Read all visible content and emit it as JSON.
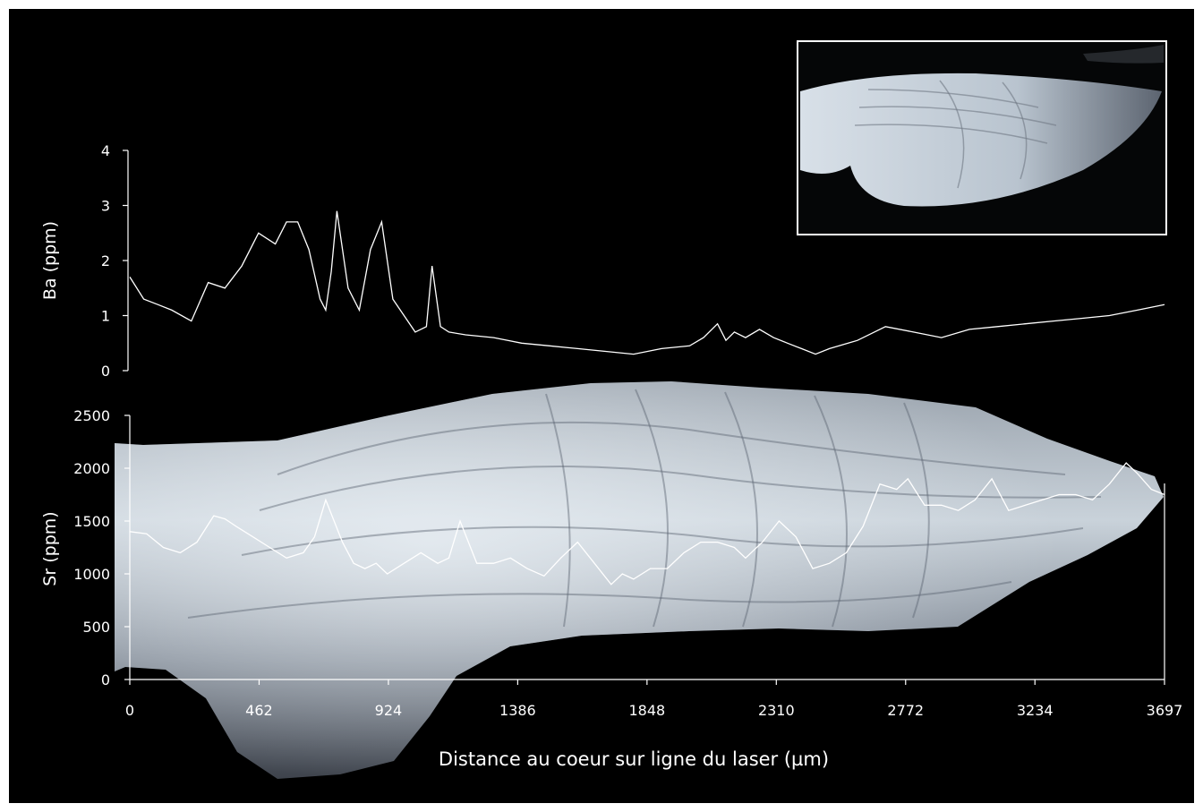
{
  "colors": {
    "background": "#000000",
    "foreground": "#ffffff",
    "otolith_light": "#dce6ee",
    "otolith_dark": "#5a6270"
  },
  "chart_data": [
    {
      "type": "line",
      "ylabel": "Ba (ppm)",
      "ylim": [
        0,
        4
      ],
      "yticks": [
        0,
        1,
        2,
        3,
        4
      ],
      "xlim": [
        0,
        3697
      ],
      "series": [
        {
          "x": [
            0,
            50,
            100,
            150,
            220,
            280,
            340,
            400,
            460,
            520,
            560,
            600,
            640,
            680,
            700,
            720,
            740,
            780,
            820,
            860,
            900,
            940,
            980,
            1020,
            1060,
            1080,
            1110,
            1140,
            1200,
            1300,
            1400,
            1500,
            1600,
            1700,
            1800,
            1900,
            2000,
            2050,
            2100,
            2130,
            2160,
            2200,
            2250,
            2300,
            2350,
            2400,
            2450,
            2500,
            2600,
            2700,
            2800,
            2900,
            3000,
            3100,
            3200,
            3300,
            3400,
            3500,
            3600,
            3697
          ],
          "values": [
            1.7,
            1.3,
            1.2,
            1.1,
            0.9,
            1.6,
            1.5,
            1.9,
            2.5,
            2.3,
            2.7,
            2.7,
            2.2,
            1.3,
            1.1,
            1.8,
            2.9,
            1.5,
            1.1,
            2.2,
            2.7,
            1.3,
            1.0,
            0.7,
            0.8,
            1.9,
            0.8,
            0.7,
            0.65,
            0.6,
            0.5,
            0.45,
            0.4,
            0.35,
            0.3,
            0.4,
            0.45,
            0.6,
            0.85,
            0.55,
            0.7,
            0.6,
            0.75,
            0.6,
            0.5,
            0.4,
            0.3,
            0.4,
            0.55,
            0.8,
            0.7,
            0.6,
            0.75,
            0.8,
            0.85,
            0.9,
            0.95,
            1.0,
            1.1,
            1.2
          ]
        }
      ]
    },
    {
      "type": "line",
      "ylabel": "Sr (ppm)",
      "xlabel": "Distance au coeur sur ligne du laser (µm)",
      "ylim": [
        0,
        2500
      ],
      "yticks": [
        0,
        500,
        1000,
        1500,
        2000,
        2500
      ],
      "xlim": [
        0,
        3697
      ],
      "xticks": [
        0,
        462,
        924,
        1386,
        1848,
        2310,
        2772,
        3234,
        3697
      ],
      "series": [
        {
          "x": [
            0,
            60,
            120,
            180,
            240,
            300,
            340,
            380,
            440,
            500,
            560,
            620,
            660,
            700,
            760,
            800,
            840,
            880,
            920,
            980,
            1040,
            1100,
            1140,
            1180,
            1240,
            1300,
            1360,
            1420,
            1480,
            1540,
            1600,
            1660,
            1720,
            1760,
            1800,
            1860,
            1920,
            1980,
            2040,
            2100,
            2160,
            2200,
            2260,
            2320,
            2380,
            2440,
            2500,
            2560,
            2620,
            2680,
            2740,
            2780,
            2840,
            2900,
            2960,
            3020,
            3080,
            3140,
            3200,
            3260,
            3320,
            3380,
            3440,
            3500,
            3560,
            3600,
            3650,
            3697
          ],
          "values": [
            1400,
            1380,
            1250,
            1200,
            1300,
            1550,
            1520,
            1450,
            1350,
            1250,
            1150,
            1200,
            1350,
            1700,
            1300,
            1100,
            1050,
            1100,
            1000,
            1100,
            1200,
            1100,
            1150,
            1500,
            1100,
            1100,
            1150,
            1050,
            980,
            1150,
            1300,
            1100,
            900,
            1000,
            950,
            1050,
            1050,
            1200,
            1300,
            1300,
            1250,
            1150,
            1300,
            1500,
            1350,
            1050,
            1100,
            1200,
            1450,
            1850,
            1800,
            1900,
            1650,
            1650,
            1600,
            1700,
            1900,
            1600,
            1650,
            1700,
            1750,
            1750,
            1700,
            1850,
            2050,
            1950,
            1800,
            1750
          ]
        }
      ]
    }
  ]
}
